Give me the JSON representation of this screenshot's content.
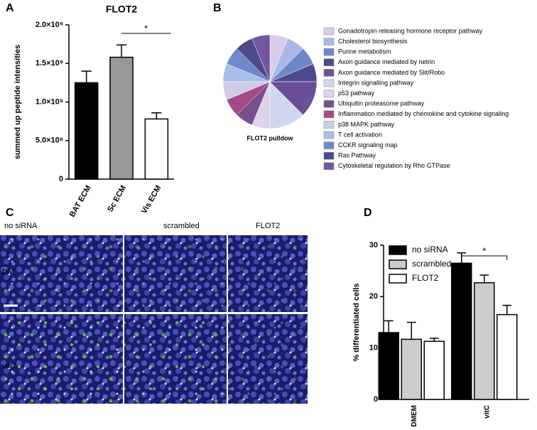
{
  "panel_labels": [
    "A",
    "B",
    "C",
    "D"
  ],
  "chart_data": [
    {
      "type": "bar",
      "title": "FLOT2",
      "ylabel": "summed up peptide intensities",
      "categories": [
        "BAT ECM",
        "Sc ECM",
        "Vis ECM"
      ],
      "values": [
        1250000000,
        1580000000,
        780000000
      ],
      "errors": [
        150000000,
        160000000,
        80000000
      ],
      "colors": [
        "#000000",
        "#999999",
        "#ffffff"
      ],
      "ylim": [
        0,
        2000000000
      ],
      "yticks": [
        0,
        {
          "value": 500000000,
          "label": "5.0×10⁸"
        },
        {
          "value": 1000000000,
          "label": "1.0×10⁹"
        },
        {
          "value": 1500000000,
          "label": "1.5×10⁹"
        },
        {
          "value": 2000000000,
          "label": "2.0×10⁹"
        }
      ],
      "significance": "*"
    },
    {
      "type": "pie",
      "label": "FLOT2 pulldow",
      "categories": [
        "Gonadotropin releasing hormone receptor pathway",
        "Cholesterol biosynthesis",
        "Purine metabolism",
        "Axon guidance mediated by netrin",
        "Axon guidance mediated by Slit/Robo",
        "Integrin signalling pathway",
        "p53 pathway",
        "Ubiquitin proteasome pathway",
        "Inflammation mediated by chemokine and cytokine signaling",
        "p38 MAPK pathway",
        "T cell activation",
        "CCKR signaling map",
        "Ras Pathway",
        "Cytoskeletal regulation by Rho GTPase"
      ],
      "values": [
        1,
        1,
        1,
        1,
        2,
        2,
        1,
        1,
        1,
        1,
        1,
        1,
        1,
        1
      ],
      "colors": [
        "#d8cce8",
        "#a9b8e6",
        "#6e87c9",
        "#4e4a8c",
        "#6c4f99",
        "#cfd8f0",
        "#ddd3ea",
        "#7a4f8f",
        "#a64a86",
        "#cfcbe6",
        "#a8bde8",
        "#6f89cb",
        "#4f4a8a",
        "#7355a0"
      ]
    },
    {
      "type": "grouped_bar",
      "ylabel": "% differentiated cells",
      "categories": [
        "DMEM",
        "vitC"
      ],
      "series": [
        {
          "name": "no siRNA",
          "color": "#000000",
          "values": [
            13,
            26.5
          ],
          "errors": [
            2.3,
            2.0
          ]
        },
        {
          "name": "scrambled",
          "color": "#cccccc",
          "values": [
            11.7,
            22.7
          ],
          "errors": [
            3.3,
            1.5
          ]
        },
        {
          "name": "FLOT2",
          "color": "#ffffff",
          "values": [
            11.3,
            16.5
          ],
          "errors": [
            0.6,
            1.8
          ]
        }
      ],
      "ylim": [
        0,
        30
      ],
      "yticks": [
        0,
        10,
        20,
        30
      ],
      "significance": "*"
    }
  ],
  "panel_c": {
    "columns": [
      "no siRNA",
      "scrambled",
      "FLOT2"
    ],
    "rows": [
      "DM",
      "vitC"
    ]
  }
}
